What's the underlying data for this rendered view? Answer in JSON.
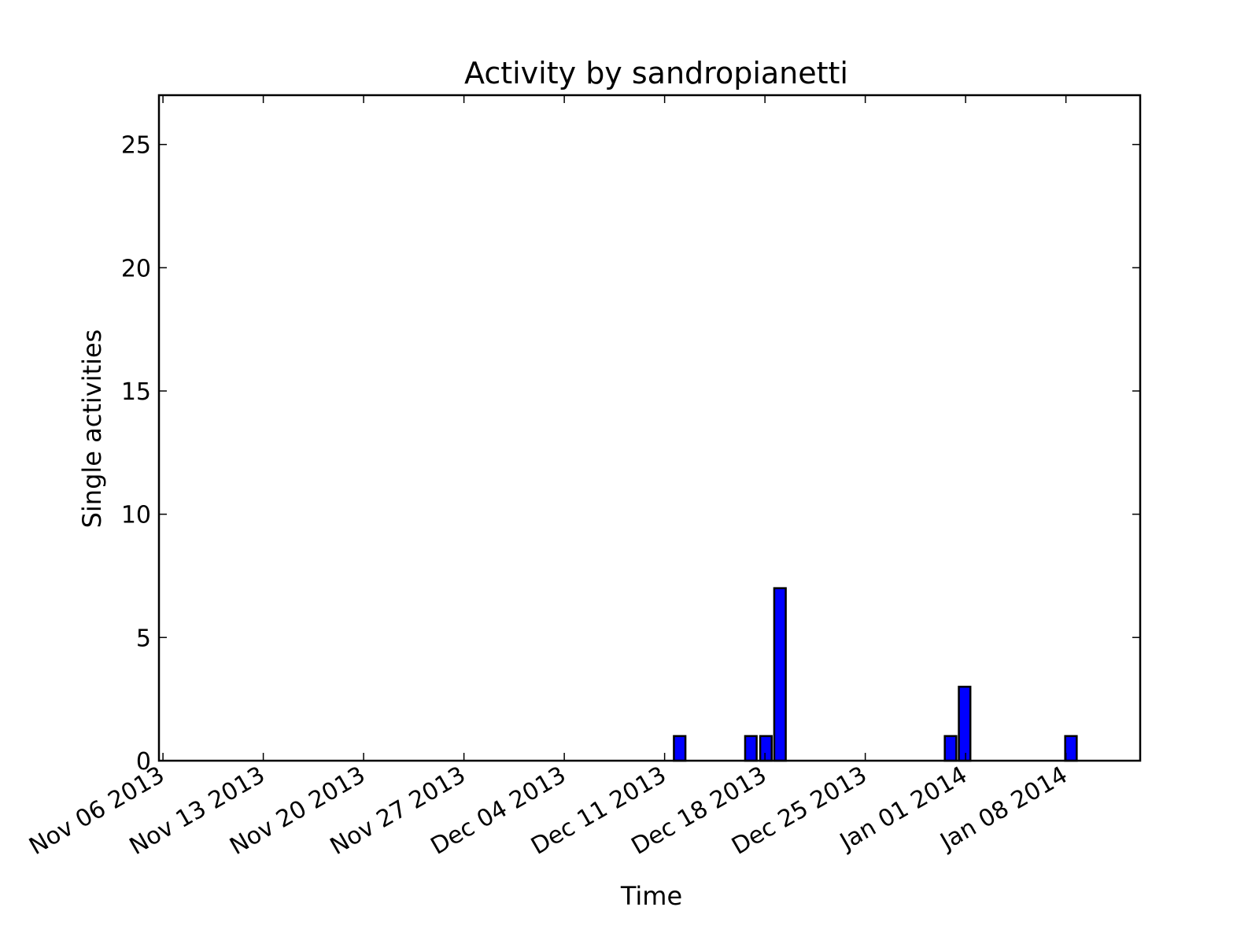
{
  "chart_data": {
    "type": "bar",
    "title": "Activity by sandropianetti",
    "xlabel": "Time",
    "ylabel": "Single activities",
    "ylim": [
      0,
      27
    ],
    "yticks": [
      0,
      5,
      10,
      15,
      20,
      25
    ],
    "xlim_days": [
      -0.4,
      97.4
    ],
    "xticks": [
      {
        "day": 0,
        "label": "Nov 06 2013"
      },
      {
        "day": 10,
        "label": "Nov 13 2013"
      },
      {
        "day": 20,
        "label": "Nov 20 2013"
      },
      {
        "day": 30,
        "label": "Nov 27 2013"
      },
      {
        "day": 40,
        "label": "Dec 04 2013"
      },
      {
        "day": 50,
        "label": "Dec 11 2013"
      },
      {
        "day": 60,
        "label": "Dec 18 2013"
      },
      {
        "day": 70,
        "label": "Dec 25 2013"
      },
      {
        "day": 80,
        "label": "Jan 01 2014"
      },
      {
        "day": 90,
        "label": "Jan 08 2014"
      }
    ],
    "bar_width_days": 1.15,
    "bars": [
      {
        "day": 51.5,
        "value": 1
      },
      {
        "day": 58.6,
        "value": 1
      },
      {
        "day": 60.1,
        "value": 1
      },
      {
        "day": 61.5,
        "value": 7
      },
      {
        "day": 78.5,
        "value": 1
      },
      {
        "day": 79.9,
        "value": 3
      },
      {
        "day": 90.5,
        "value": 1
      }
    ],
    "colors": {
      "bar": "#0000ff",
      "edge": "#000000"
    }
  }
}
